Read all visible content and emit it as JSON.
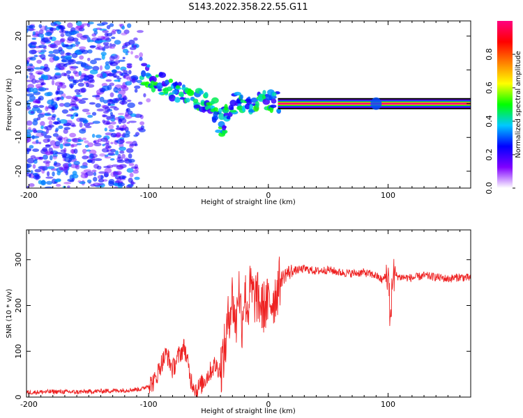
{
  "figure": {
    "title": "S143.2022.358.22.55.G11"
  },
  "chart_data": [
    {
      "type": "heatmap",
      "xlabel": "Height of straight line (km)",
      "ylabel": "Frequency (Hz)",
      "xlim": [
        -202,
        169
      ],
      "ylim": [
        -25,
        24.5
      ],
      "xticks": [
        -200,
        -100,
        0,
        100
      ],
      "yticks": [
        -20,
        -10,
        0,
        10,
        20
      ],
      "colorbar": {
        "label": "Normalized spectral amplitude",
        "range": [
          0,
          1
        ],
        "ticks": [
          "0.0",
          "0.2",
          "0.4",
          "0.6",
          "0.8"
        ],
        "colors": [
          "#ffffff",
          "#8000ff",
          "#0000ff",
          "#00c8ff",
          "#00ff00",
          "#ffff00",
          "#ff8000",
          "#ff0000",
          "#ff0080"
        ]
      },
      "features": [
        {
          "name": "diffuse noise",
          "x_range": [
            -202,
            -100
          ],
          "freq_range": [
            -25,
            24
          ],
          "amplitude": 0.2
        },
        {
          "name": "drifting signal",
          "points": [
            [
              -105,
              9
            ],
            [
              -95,
              7
            ],
            [
              -85,
              5
            ],
            [
              -75,
              3
            ],
            [
              -65,
              1
            ],
            [
              -55,
              1
            ],
            [
              -45,
              -2
            ],
            [
              -38,
              -7
            ],
            [
              -30,
              0
            ],
            [
              -20,
              0
            ],
            [
              -10,
              0
            ],
            [
              0,
              1
            ],
            [
              8,
              0
            ]
          ],
          "amplitude": 0.35
        },
        {
          "name": "steady carrier",
          "x_range": [
            8,
            169
          ],
          "freq": 0,
          "amplitude": 1.0
        },
        {
          "name": "carrier blob",
          "x": 90,
          "freq": 0,
          "amplitude": 0.3
        }
      ]
    },
    {
      "type": "line",
      "xlabel": "Height of straight line (km)",
      "ylabel": "SNR (10 * v/v)",
      "xlim": [
        -202,
        169
      ],
      "ylim": [
        0,
        365
      ],
      "xticks": [
        -200,
        -100,
        0,
        100
      ],
      "yticks": [
        0,
        100,
        200,
        300
      ],
      "series": [
        {
          "color": "#ee2222",
          "x": [
            -202,
            -180,
            -160,
            -140,
            -120,
            -105,
            -95,
            -90,
            -85,
            -80,
            -75,
            -70,
            -65,
            -60,
            -55,
            -50,
            -45,
            -40,
            -36,
            -33,
            -30,
            -27,
            -25,
            -22,
            -20,
            -17,
            -15,
            -12,
            -10,
            -5,
            0,
            5,
            10,
            15,
            20,
            30,
            40,
            50,
            60,
            70,
            80,
            90,
            95,
            100,
            102,
            104,
            110,
            120,
            130,
            140,
            150,
            160,
            169
          ],
          "y": [
            10,
            12,
            11,
            13,
            15,
            18,
            35,
            70,
            95,
            60,
            90,
            110,
            40,
            15,
            30,
            50,
            70,
            60,
            110,
            180,
            220,
            150,
            250,
            160,
            230,
            190,
            240,
            215,
            220,
            195,
            205,
            215,
            255,
            270,
            275,
            280,
            275,
            278,
            272,
            270,
            272,
            265,
            255,
            270,
            160,
            268,
            262,
            260,
            265,
            262,
            258,
            262,
            260
          ]
        }
      ]
    }
  ]
}
